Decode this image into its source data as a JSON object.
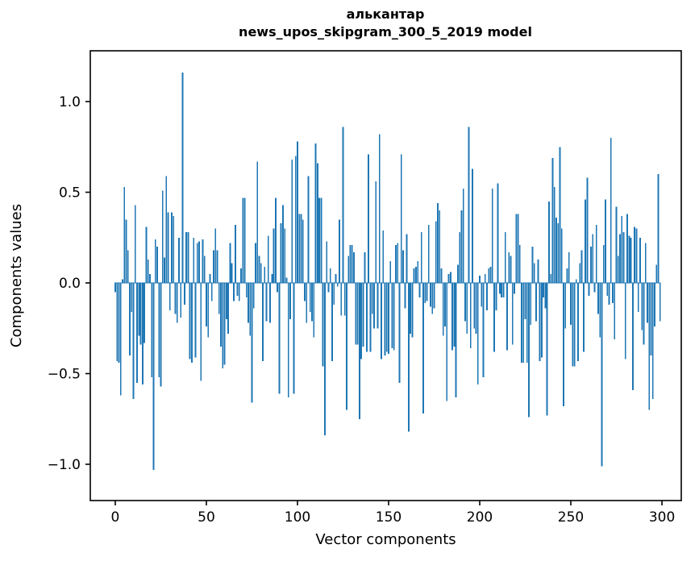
{
  "chart_data": {
    "type": "bar",
    "title_word": "алькантар",
    "title_model": "news_upos_skipgram_300_5_2019 model",
    "xlabel": "Vector components",
    "ylabel": "Components values",
    "bar_color": "#1f77b4",
    "text_color": "#000000",
    "background_color": "#ffffff",
    "bar_width": 0.8,
    "x_start": 0,
    "xticks": [
      0,
      50,
      100,
      150,
      200,
      250,
      300
    ],
    "yticks": [
      -1.0,
      -0.5,
      0.0,
      0.5,
      1.0
    ],
    "ytick_labels": [
      "−1.0",
      "−0.5",
      "0.0",
      "0.5",
      "1.0"
    ],
    "xtick_labels": [
      "0",
      "50",
      "100",
      "150",
      "200",
      "250",
      "300"
    ],
    "xlim": [
      -13.7,
      310.6
    ],
    "ylim": [
      -1.2,
      1.28
    ],
    "grid": false,
    "legend": false,
    "values": [
      -0.05,
      -0.43,
      -0.44,
      -0.62,
      0.02,
      0.53,
      0.35,
      0.18,
      -0.4,
      -0.16,
      -0.64,
      0.43,
      -0.55,
      -0.29,
      -0.34,
      -0.56,
      -0.33,
      0.31,
      0.13,
      0.05,
      -0.52,
      -1.03,
      0.24,
      0.2,
      -0.52,
      -0.57,
      0.51,
      0.14,
      0.59,
      0.39,
      -0.15,
      0.39,
      0.37,
      -0.17,
      -0.22,
      0.25,
      -0.19,
      1.16,
      -0.12,
      0.28,
      0.28,
      -0.42,
      -0.44,
      0.25,
      -0.41,
      0.22,
      0.23,
      -0.54,
      0.24,
      0.15,
      -0.24,
      -0.3,
      0.05,
      -0.1,
      0.18,
      0.3,
      0.18,
      -0.17,
      -0.35,
      -0.47,
      -0.45,
      -0.2,
      -0.28,
      0.22,
      0.11,
      -0.1,
      0.32,
      -0.07,
      -0.1,
      0.08,
      0.47,
      0.47,
      -0.08,
      -0.22,
      -0.29,
      -0.66,
      -0.14,
      0.22,
      0.67,
      0.15,
      0.11,
      -0.43,
      0.09,
      -0.21,
      0.26,
      -0.22,
      0.05,
      0.3,
      0.47,
      -0.05,
      -0.61,
      0.33,
      0.43,
      0.3,
      0.03,
      -0.63,
      -0.2,
      0.68,
      -0.61,
      0.7,
      0.78,
      0.38,
      0.38,
      0.35,
      -0.1,
      -0.22,
      0.59,
      -0.16,
      -0.21,
      -0.3,
      0.77,
      0.66,
      0.47,
      0.47,
      -0.46,
      -0.84,
      0.23,
      -0.05,
      0.08,
      -0.43,
      -0.12,
      0.05,
      -0.02,
      0.35,
      -0.18,
      0.86,
      -0.18,
      -0.7,
      0.15,
      0.21,
      0.21,
      0.17,
      -0.34,
      -0.34,
      -0.75,
      -0.42,
      -0.35,
      0.17,
      -0.38,
      0.71,
      -0.38,
      -0.17,
      -0.25,
      0.56,
      -0.25,
      0.82,
      -0.42,
      0.29,
      -0.4,
      -0.38,
      -0.39,
      0.12,
      -0.36,
      -0.37,
      0.21,
      0.22,
      -0.55,
      0.71,
      0.18,
      -0.14,
      0.27,
      -0.82,
      -0.28,
      -0.3,
      0.08,
      0.09,
      0.12,
      -0.08,
      0.28,
      -0.72,
      -0.11,
      -0.1,
      0.32,
      -0.13,
      -0.17,
      -0.14,
      0.34,
      0.44,
      0.4,
      0.08,
      -0.29,
      -0.24,
      -0.65,
      0.05,
      0.06,
      -0.37,
      -0.35,
      -0.63,
      0.1,
      0.28,
      0.4,
      0.52,
      -0.21,
      -0.28,
      0.86,
      -0.36,
      0.63,
      -0.25,
      -0.28,
      -0.56,
      0.04,
      -0.13,
      -0.52,
      0.05,
      -0.15,
      0.08,
      0.09,
      0.52,
      -0.38,
      -0.15,
      0.55,
      -0.06,
      -0.08,
      -0.08,
      0.28,
      -0.37,
      0.17,
      0.15,
      -0.34,
      -0.06,
      0.38,
      0.38,
      0.21,
      -0.44,
      -0.44,
      -0.2,
      -0.44,
      -0.74,
      -0.23,
      0.2,
      0.11,
      -0.21,
      0.13,
      -0.43,
      -0.41,
      -0.08,
      -0.14,
      -0.73,
      0.45,
      0.05,
      0.69,
      0.53,
      0.36,
      0.33,
      0.75,
      0.3,
      -0.68,
      -0.25,
      0.08,
      0.17,
      -0.23,
      -0.46,
      -0.46,
      0.02,
      -0.43,
      0.11,
      0.18,
      -0.38,
      0.46,
      0.58,
      -0.07,
      0.2,
      0.27,
      -0.05,
      0.32,
      -0.17,
      -0.3,
      -1.01,
      0.21,
      0.46,
      -0.07,
      -0.12,
      0.8,
      -0.11,
      -0.31,
      0.42,
      0.15,
      0.27,
      0.37,
      0.28,
      -0.42,
      0.38,
      0.26,
      0.25,
      -0.59,
      0.31,
      0.3,
      -0.16,
      0.25,
      -0.26,
      -0.34,
      0.22,
      -0.22,
      -0.7,
      -0.4,
      -0.64,
      -0.24,
      0.1,
      0.6,
      -0.21
    ]
  }
}
